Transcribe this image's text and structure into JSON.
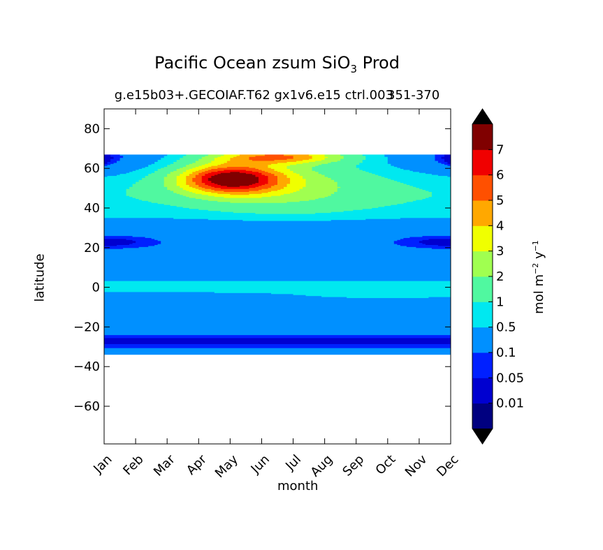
{
  "chart_data": {
    "type": "heatmap",
    "title_prefix": "Pacific Ocean zsum SiO",
    "title_sub": "3",
    "title_suffix": " Prod",
    "subtitle": "g.e15b03+.GECOIAF.T62 gx1v6.e15 ctrl.003",
    "subtitle_right": "351-370",
    "xlabel": "month",
    "ylabel": "latitude",
    "colorbar_label_prefix": "mol m",
    "colorbar_label_exp1": "−2",
    "colorbar_label_mid": " y",
    "colorbar_label_exp2": "−1",
    "categories": [
      "Jan",
      "Feb",
      "Mar",
      "Apr",
      "May",
      "Jun",
      "Jul",
      "Aug",
      "Sep",
      "Oct",
      "Nov",
      "Dec"
    ],
    "yticks": [
      80,
      60,
      40,
      20,
      0,
      -20,
      -40,
      -60
    ],
    "ytick_labels": [
      "80",
      "60",
      "40",
      "20",
      "0",
      "−20",
      "−40",
      "−60"
    ],
    "ylim": [
      -79,
      90
    ],
    "data_lat_range": [
      -34,
      67
    ],
    "levels": [
      0.01,
      0.05,
      0.1,
      0.5,
      1,
      2,
      3,
      4,
      5,
      6,
      7
    ],
    "level_labels": [
      "0.01",
      "0.05",
      "0.1",
      "0.5",
      "1",
      "2",
      "3",
      "4",
      "5",
      "6",
      "7"
    ],
    "band_colors": [
      "#000080",
      "#0000d0",
      "#0020ff",
      "#0090ff",
      "#00e8f0",
      "#50f8a0",
      "#a0ff50",
      "#f0ff00",
      "#ffa800",
      "#ff5000",
      "#f00000",
      "#800000"
    ],
    "colorbar_extend": "both",
    "max_location": {
      "month": 4.0,
      "lat": 55
    },
    "grid": false,
    "cmap": "jet"
  }
}
